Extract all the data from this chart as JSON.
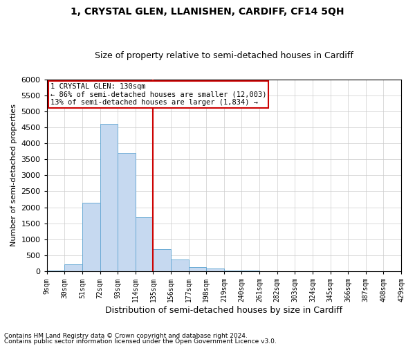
{
  "title1": "1, CRYSTAL GLEN, LLANISHEN, CARDIFF, CF14 5QH",
  "title2": "Size of property relative to semi-detached houses in Cardiff",
  "xlabel": "Distribution of semi-detached houses by size in Cardiff",
  "ylabel": "Number of semi-detached properties",
  "footnote1": "Contains HM Land Registry data © Crown copyright and database right 2024.",
  "footnote2": "Contains public sector information licensed under the Open Government Licence v3.0.",
  "annotation_line1": "1 CRYSTAL GLEN: 130sqm",
  "annotation_line2": "← 86% of semi-detached houses are smaller (12,003)",
  "annotation_line3": "13% of semi-detached houses are larger (1,834) →",
  "bins": [
    9,
    30,
    51,
    72,
    93,
    114,
    135,
    156,
    177,
    198,
    219,
    240,
    261,
    282,
    303,
    324,
    345,
    366,
    387,
    408,
    429
  ],
  "bin_labels": [
    "9sqm",
    "30sqm",
    "51sqm",
    "72sqm",
    "93sqm",
    "114sqm",
    "135sqm",
    "156sqm",
    "177sqm",
    "198sqm",
    "219sqm",
    "240sqm",
    "261sqm",
    "282sqm",
    "303sqm",
    "324sqm",
    "345sqm",
    "366sqm",
    "387sqm",
    "408sqm",
    "429sqm"
  ],
  "counts": [
    30,
    220,
    2150,
    4600,
    3700,
    1700,
    700,
    370,
    130,
    80,
    30,
    15,
    8,
    5,
    3,
    2,
    1,
    1,
    0,
    0
  ],
  "bar_color": "#c6d9f0",
  "bar_edge_color": "#6aaad4",
  "vline_color": "#cc0000",
  "vline_x": 135,
  "ylim": [
    0,
    6000
  ],
  "yticks": [
    0,
    500,
    1000,
    1500,
    2000,
    2500,
    3000,
    3500,
    4000,
    4500,
    5000,
    5500,
    6000
  ],
  "box_color": "#cc0000",
  "background_color": "#ffffff",
  "grid_color": "#cccccc",
  "title1_fontsize": 10,
  "title2_fontsize": 9,
  "xlabel_fontsize": 9,
  "ylabel_fontsize": 8,
  "tick_fontsize": 7,
  "ann_fontsize": 7.5,
  "footnote_fontsize": 6.5
}
